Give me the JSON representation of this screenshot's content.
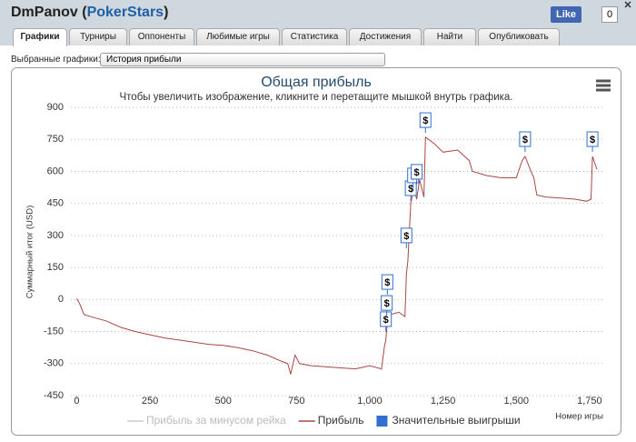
{
  "header": {
    "title_prefix": "DmPanov (",
    "site": "PokerStars",
    "title_suffix": ")",
    "like": "Like",
    "like_count": "0"
  },
  "tabs": [
    "Графики",
    "Турниры",
    "Оппоненты",
    "Любимые игры",
    "Статистика",
    "Достижения",
    "Найти",
    "Опубликовать"
  ],
  "selector": {
    "label": "Выбранные графики:",
    "value": "История прибыли"
  },
  "chart_data": {
    "type": "line",
    "title": "Общая прибыль",
    "subtitle": "Чтобы увеличить изображение, кликните и перетащите мышкой внутрь графика.",
    "y_label": "Суммарный итог (USD)",
    "x_label": "Номер игры",
    "xlim": [
      -20,
      1800
    ],
    "ylim": [
      -450,
      900
    ],
    "xticks": [
      0,
      250,
      500,
      750,
      {
        "value": 1000,
        "label": "1,000"
      },
      {
        "value": 1250,
        "label": "1,250"
      },
      {
        "value": 1500,
        "label": "1,500"
      },
      {
        "value": 1750,
        "label": "1,750"
      }
    ],
    "yticks": [
      -450,
      -300,
      -150,
      0,
      150,
      300,
      450,
      600,
      750,
      900
    ],
    "grid": true,
    "series": [
      {
        "name": "Прибыль за минусом рейка",
        "color": "#cccccc",
        "visible": false
      },
      {
        "name": "Прибыль",
        "color": "#aa4643",
        "x": [
          0,
          10,
          25,
          60,
          100,
          150,
          200,
          250,
          300,
          350,
          400,
          450,
          500,
          550,
          600,
          650,
          700,
          720,
          730,
          745,
          760,
          800,
          850,
          900,
          950,
          1000,
          1040,
          1050,
          1055,
          1060,
          1070,
          1100,
          1120,
          1125,
          1130,
          1140,
          1150,
          1160,
          1170,
          1185,
          1190,
          1220,
          1250,
          1300,
          1340,
          1350,
          1400,
          1450,
          1500,
          1520,
          1530,
          1550,
          1560,
          1570,
          1600,
          1650,
          1700,
          1740,
          1755,
          1760,
          1775
        ],
        "values": [
          5,
          -20,
          -70,
          -85,
          -100,
          -130,
          -150,
          -165,
          -180,
          -190,
          -200,
          -210,
          -215,
          -225,
          -240,
          -260,
          -290,
          -300,
          -350,
          -260,
          -300,
          -310,
          -315,
          -320,
          -325,
          -310,
          -325,
          -220,
          -190,
          -100,
          -70,
          -60,
          -80,
          120,
          180,
          450,
          520,
          470,
          560,
          480,
          760,
          730,
          690,
          700,
          650,
          600,
          580,
          570,
          570,
          650,
          670,
          600,
          570,
          490,
          480,
          475,
          470,
          460,
          470,
          670,
          610
        ]
      },
      {
        "name": "Значительные выигрыши",
        "color": "#2f6fd0",
        "marker": "$",
        "x": [
          1055,
          1058,
          1060,
          1125,
          1140,
          1148,
          1160,
          1190,
          1530,
          1760
        ],
        "values": [
          -92,
          -16,
          82,
          300,
          521,
          581,
          598,
          840,
          751,
          751
        ]
      }
    ]
  }
}
